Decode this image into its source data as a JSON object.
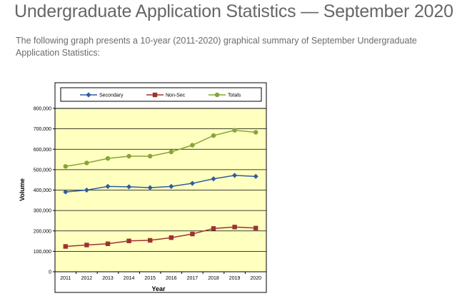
{
  "page": {
    "title": "Undergraduate Application Statistics — September 2020",
    "intro": "The following graph presents a 10-year (2011-2020) graphical summary of September Undergraduate Application Statistics:"
  },
  "chart_data": {
    "type": "line",
    "title": "",
    "xlabel": "Year",
    "ylabel": "Volume",
    "x": [
      "2011",
      "2012",
      "2013",
      "2014",
      "2015",
      "2016",
      "2017",
      "2018",
      "2019",
      "2020"
    ],
    "ylim": [
      0,
      800000
    ],
    "yticks": [
      "0",
      "100,000",
      "200,000",
      "300,000",
      "400,000",
      "500,000",
      "600,000",
      "700,000",
      "800,000"
    ],
    "grid": true,
    "legend_position": "top",
    "plot_background": "#ffffc0",
    "series": [
      {
        "name": "Secondary",
        "color": "#2e5e9e",
        "marker": "diamond",
        "values": [
          391000,
          400000,
          418000,
          416000,
          412000,
          418000,
          433000,
          455000,
          472000,
          467000
        ]
      },
      {
        "name": "Non-Sec",
        "color": "#9c3330",
        "marker": "square",
        "values": [
          124000,
          131000,
          137000,
          151000,
          154000,
          167000,
          185000,
          212000,
          219000,
          214000
        ]
      },
      {
        "name": "Totals",
        "color": "#86a43a",
        "marker": "circle",
        "values": [
          516000,
          533000,
          555000,
          566000,
          566000,
          587000,
          620000,
          667000,
          693000,
          683000
        ]
      }
    ]
  }
}
